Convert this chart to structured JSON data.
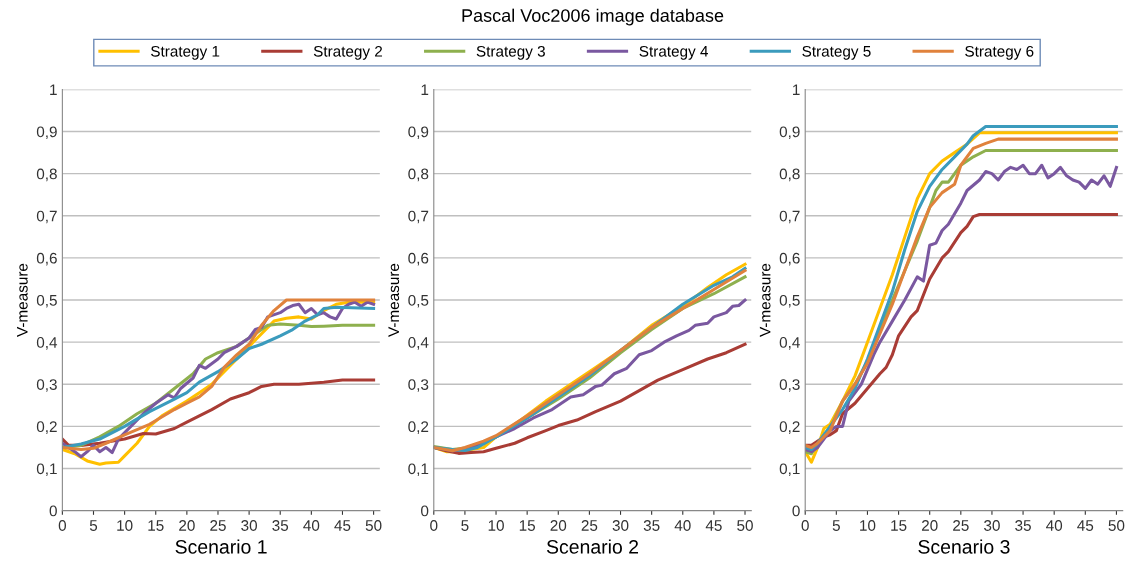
{
  "chart_data": [
    {
      "type": "line",
      "xlabel": "Scenario 1",
      "ylabel": "V-measure",
      "legend": "top",
      "grid": "y",
      "xlim": [
        0,
        51
      ],
      "xticks": [
        0,
        5,
        10,
        15,
        20,
        25,
        30,
        35,
        40,
        45,
        50
      ],
      "ylim": [
        0,
        1
      ],
      "yticks": [
        0,
        {
          "value": 0.1,
          "label": "0,1"
        },
        {
          "value": 0.2,
          "label": "0,2"
        },
        {
          "value": 0.3,
          "label": "0,3"
        },
        {
          "value": 0.4,
          "label": "0,4"
        },
        {
          "value": 0.5,
          "label": "0,5"
        },
        {
          "value": 0.6,
          "label": "0,6"
        },
        {
          "value": 0.7,
          "label": "0,7"
        },
        {
          "value": 0.8,
          "label": "0,8"
        },
        {
          "value": 0.9,
          "label": "0,9"
        },
        1
      ],
      "series": [
        {
          "name": "Strategy 1",
          "color": "#ffc000",
          "x": [
            0,
            2,
            4,
            6,
            7,
            9,
            10,
            12,
            14,
            16,
            20,
            22,
            24,
            26,
            30,
            32,
            34,
            36,
            38,
            40,
            42,
            44,
            46,
            50
          ],
          "values": [
            0.145,
            0.135,
            0.118,
            0.11,
            0.113,
            0.115,
            0.13,
            0.16,
            0.2,
            0.225,
            0.26,
            0.28,
            0.3,
            0.33,
            0.39,
            0.42,
            0.45,
            0.457,
            0.46,
            0.455,
            0.475,
            0.49,
            0.495,
            0.495
          ]
        },
        {
          "name": "Strategy 2",
          "color": "#a93c35",
          "x": [
            0,
            1,
            3,
            6,
            10,
            13,
            15,
            18,
            20,
            22,
            24,
            27,
            30,
            32,
            34,
            38,
            42,
            45,
            50
          ],
          "values": [
            0.17,
            0.155,
            0.155,
            0.16,
            0.17,
            0.183,
            0.182,
            0.195,
            0.21,
            0.225,
            0.24,
            0.265,
            0.28,
            0.295,
            0.3,
            0.3,
            0.305,
            0.31,
            0.31
          ]
        },
        {
          "name": "Strategy 3",
          "color": "#8eb04e",
          "x": [
            0,
            3,
            6,
            9,
            12,
            15,
            18,
            21,
            23,
            25,
            28,
            30,
            33,
            35,
            38,
            40,
            42,
            45,
            50
          ],
          "values": [
            0.15,
            0.155,
            0.175,
            0.2,
            0.23,
            0.255,
            0.29,
            0.325,
            0.36,
            0.375,
            0.39,
            0.41,
            0.44,
            0.443,
            0.44,
            0.437,
            0.438,
            0.44,
            0.44
          ]
        },
        {
          "name": "Strategy 4",
          "color": "#7a58a0",
          "x": [
            0,
            1,
            2,
            3,
            4,
            5,
            6,
            7,
            8,
            9,
            11,
            13,
            15,
            17,
            18,
            19,
            21,
            22,
            23,
            25,
            26,
            28,
            30,
            31,
            32,
            33,
            35,
            36,
            37,
            38,
            39,
            40,
            41,
            42,
            43,
            44,
            45,
            46,
            47,
            48,
            49,
            50
          ],
          "values": [
            0.16,
            0.15,
            0.14,
            0.128,
            0.14,
            0.155,
            0.14,
            0.15,
            0.138,
            0.17,
            0.2,
            0.23,
            0.255,
            0.275,
            0.268,
            0.29,
            0.315,
            0.345,
            0.338,
            0.36,
            0.375,
            0.39,
            0.41,
            0.43,
            0.435,
            0.46,
            0.47,
            0.48,
            0.487,
            0.49,
            0.47,
            0.48,
            0.465,
            0.47,
            0.46,
            0.455,
            0.48,
            0.49,
            0.495,
            0.485,
            0.495,
            0.49
          ]
        },
        {
          "name": "Strategy 5",
          "color": "#3b9bbd",
          "x": [
            0,
            3,
            6,
            10,
            14,
            18,
            20,
            22,
            25,
            28,
            30,
            32,
            35,
            37,
            39,
            41,
            42,
            44,
            50
          ],
          "values": [
            0.15,
            0.158,
            0.17,
            0.2,
            0.235,
            0.265,
            0.28,
            0.305,
            0.33,
            0.36,
            0.385,
            0.395,
            0.415,
            0.43,
            0.45,
            0.465,
            0.48,
            0.483,
            0.48
          ]
        },
        {
          "name": "Strategy 6",
          "color": "#e0823c",
          "x": [
            0,
            3,
            5,
            7,
            10,
            14,
            18,
            20,
            22,
            24,
            26,
            28,
            30,
            32,
            34,
            36,
            40,
            50
          ],
          "values": [
            0.15,
            0.145,
            0.148,
            0.16,
            0.18,
            0.205,
            0.24,
            0.255,
            0.27,
            0.295,
            0.34,
            0.37,
            0.395,
            0.44,
            0.475,
            0.5,
            0.5,
            0.5
          ]
        }
      ]
    },
    {
      "type": "line",
      "title": "Pascal Voc2006 image database",
      "xlabel": "Scenario 2",
      "ylabel": "V-measure",
      "grid": "y",
      "xlim": [
        0,
        51
      ],
      "xticks": [
        0,
        5,
        10,
        15,
        20,
        25,
        30,
        35,
        40,
        45,
        50
      ],
      "ylim": [
        0,
        1
      ],
      "yticks": [
        0,
        {
          "value": 0.1,
          "label": "0,1"
        },
        {
          "value": 0.2,
          "label": "0,2"
        },
        {
          "value": 0.3,
          "label": "0,3"
        },
        {
          "value": 0.4,
          "label": "0,4"
        },
        {
          "value": 0.5,
          "label": "0,5"
        },
        {
          "value": 0.6,
          "label": "0,6"
        },
        {
          "value": 0.7,
          "label": "0,7"
        },
        {
          "value": 0.8,
          "label": "0,8"
        },
        {
          "value": 0.9,
          "label": "0,9"
        },
        1
      ],
      "series": [
        {
          "color": "#ffc000",
          "x": [
            0,
            2,
            4,
            6,
            8,
            10,
            14,
            18,
            22,
            26,
            30,
            35,
            40,
            44,
            47,
            50
          ],
          "values": [
            0.15,
            0.14,
            0.14,
            0.145,
            0.15,
            0.175,
            0.215,
            0.26,
            0.3,
            0.34,
            0.38,
            0.44,
            0.485,
            0.53,
            0.56,
            0.585
          ]
        },
        {
          "color": "#a93c35",
          "x": [
            0,
            2,
            4,
            6,
            8,
            10,
            13,
            15,
            18,
            20,
            23,
            26,
            30,
            33,
            36,
            40,
            44,
            47,
            50
          ],
          "values": [
            0.15,
            0.142,
            0.136,
            0.138,
            0.14,
            0.148,
            0.16,
            0.173,
            0.19,
            0.202,
            0.215,
            0.235,
            0.26,
            0.285,
            0.31,
            0.335,
            0.36,
            0.375,
            0.395
          ]
        },
        {
          "color": "#8eb04e",
          "x": [
            0,
            3,
            6,
            10,
            15,
            20,
            25,
            30,
            35,
            40,
            45,
            50
          ],
          "values": [
            0.152,
            0.145,
            0.15,
            0.175,
            0.22,
            0.265,
            0.315,
            0.375,
            0.43,
            0.48,
            0.515,
            0.555
          ]
        },
        {
          "color": "#7a58a0",
          "x": [
            0,
            3,
            5,
            8,
            10,
            13,
            16,
            19,
            22,
            24,
            26,
            27,
            29,
            31,
            33,
            35,
            37,
            39,
            41,
            42,
            44,
            45,
            47,
            48,
            49,
            50
          ],
          "values": [
            0.15,
            0.142,
            0.145,
            0.16,
            0.175,
            0.195,
            0.22,
            0.24,
            0.27,
            0.275,
            0.295,
            0.298,
            0.325,
            0.338,
            0.37,
            0.38,
            0.4,
            0.415,
            0.428,
            0.44,
            0.445,
            0.46,
            0.47,
            0.485,
            0.487,
            0.5
          ]
        },
        {
          "color": "#3b9bbd",
          "x": [
            0,
            3,
            5,
            7,
            10,
            15,
            20,
            25,
            30,
            35,
            40,
            45,
            48,
            50
          ],
          "values": [
            0.15,
            0.145,
            0.143,
            0.15,
            0.175,
            0.22,
            0.27,
            0.32,
            0.38,
            0.435,
            0.49,
            0.535,
            0.555,
            0.575
          ]
        },
        {
          "color": "#e0823c",
          "x": [
            0,
            3,
            5,
            8,
            10,
            15,
            20,
            25,
            30,
            35,
            40,
            45,
            50
          ],
          "values": [
            0.15,
            0.142,
            0.15,
            0.165,
            0.178,
            0.225,
            0.275,
            0.325,
            0.38,
            0.435,
            0.48,
            0.525,
            0.57
          ]
        }
      ]
    },
    {
      "type": "line",
      "xlabel": "Scenario 3",
      "ylabel": "V-measure",
      "grid": "y",
      "xlim": [
        0,
        51
      ],
      "xticks": [
        0,
        5,
        10,
        15,
        20,
        25,
        30,
        35,
        40,
        45,
        50
      ],
      "ylim": [
        0,
        1
      ],
      "yticks": [
        0,
        {
          "value": 0.1,
          "label": "0,1"
        },
        {
          "value": 0.2,
          "label": "0,2"
        },
        {
          "value": 0.3,
          "label": "0,3"
        },
        {
          "value": 0.4,
          "label": "0,4"
        },
        {
          "value": 0.5,
          "label": "0,5"
        },
        {
          "value": 0.6,
          "label": "0,6"
        },
        {
          "value": 0.7,
          "label": "0,7"
        },
        {
          "value": 0.8,
          "label": "0,8"
        },
        {
          "value": 0.9,
          "label": "0,9"
        },
        1
      ],
      "series": [
        {
          "color": "#ffc000",
          "x": [
            0,
            1,
            2,
            3,
            4,
            6,
            8,
            10,
            12,
            14,
            16,
            18,
            20,
            22,
            24,
            26,
            28,
            50
          ],
          "values": [
            0.14,
            0.115,
            0.15,
            0.195,
            0.205,
            0.26,
            0.32,
            0.4,
            0.48,
            0.56,
            0.65,
            0.74,
            0.8,
            0.83,
            0.85,
            0.87,
            0.897,
            0.897
          ]
        },
        {
          "color": "#a93c35",
          "x": [
            0,
            1,
            3,
            4,
            5,
            6,
            8,
            10,
            12,
            13,
            14,
            15,
            17,
            18,
            20,
            22,
            23,
            25,
            26,
            27,
            28,
            50
          ],
          "values": [
            0.155,
            0.155,
            0.175,
            0.18,
            0.19,
            0.23,
            0.255,
            0.29,
            0.325,
            0.34,
            0.37,
            0.415,
            0.46,
            0.475,
            0.55,
            0.6,
            0.615,
            0.66,
            0.675,
            0.698,
            0.703,
            0.703
          ]
        },
        {
          "color": "#8eb04e",
          "x": [
            0,
            1,
            2,
            4,
            6,
            8,
            10,
            12,
            14,
            16,
            18,
            20,
            21,
            22,
            23,
            25,
            27,
            29,
            50
          ],
          "values": [
            0.14,
            0.135,
            0.16,
            0.195,
            0.26,
            0.3,
            0.355,
            0.43,
            0.5,
            0.57,
            0.64,
            0.72,
            0.76,
            0.78,
            0.78,
            0.82,
            0.84,
            0.855,
            0.855
          ]
        },
        {
          "color": "#7a58a0",
          "x": [
            0,
            1,
            2,
            3,
            4,
            5,
            6,
            7,
            9,
            11,
            12,
            14,
            16,
            18,
            19,
            20,
            21,
            22,
            23,
            25,
            26,
            28,
            29,
            30,
            31,
            32,
            33,
            34,
            35,
            36,
            37,
            38,
            39,
            40,
            41,
            42,
            43,
            44,
            45,
            46,
            47,
            48,
            49,
            50
          ],
          "values": [
            0.145,
            0.14,
            0.15,
            0.17,
            0.19,
            0.2,
            0.2,
            0.26,
            0.3,
            0.37,
            0.4,
            0.45,
            0.5,
            0.555,
            0.545,
            0.63,
            0.635,
            0.665,
            0.68,
            0.73,
            0.76,
            0.785,
            0.805,
            0.8,
            0.785,
            0.805,
            0.815,
            0.81,
            0.82,
            0.8,
            0.8,
            0.82,
            0.79,
            0.8,
            0.815,
            0.795,
            0.785,
            0.78,
            0.765,
            0.785,
            0.775,
            0.795,
            0.77,
            0.815
          ]
        },
        {
          "color": "#3b9bbd",
          "x": [
            0,
            1,
            2,
            4,
            6,
            8,
            10,
            12,
            14,
            16,
            18,
            20,
            22,
            24,
            26,
            27,
            29,
            50
          ],
          "values": [
            0.15,
            0.145,
            0.16,
            0.2,
            0.24,
            0.29,
            0.36,
            0.44,
            0.52,
            0.62,
            0.71,
            0.77,
            0.81,
            0.84,
            0.87,
            0.89,
            0.912,
            0.912
          ]
        },
        {
          "color": "#e0823c",
          "x": [
            0,
            1,
            2,
            4,
            6,
            8,
            10,
            12,
            14,
            16,
            18,
            20,
            22,
            24,
            25,
            27,
            29,
            31,
            50
          ],
          "values": [
            0.155,
            0.15,
            0.16,
            0.19,
            0.26,
            0.3,
            0.35,
            0.42,
            0.49,
            0.57,
            0.65,
            0.72,
            0.755,
            0.775,
            0.82,
            0.86,
            0.872,
            0.882,
            0.882
          ]
        }
      ]
    }
  ]
}
